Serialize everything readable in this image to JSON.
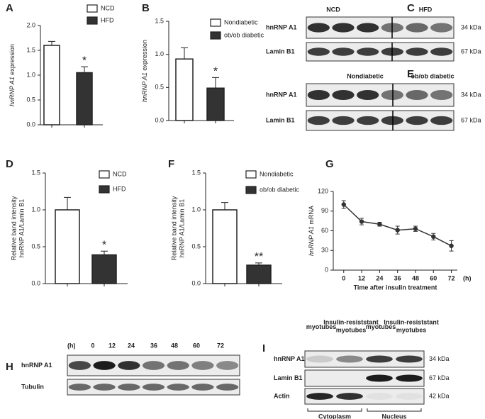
{
  "chart_data": [
    {
      "label": "A",
      "type": "bar",
      "y_label": [
        "hnRNP A1",
        "expression"
      ],
      "categories": [
        "NCD",
        "HFD"
      ],
      "values": [
        1.6,
        1.05
      ],
      "errors": [
        0.08,
        0.12
      ],
      "colors": [
        "#ffffff",
        "#333333"
      ],
      "ylim": [
        0,
        2
      ],
      "yticks": [
        {
          "value": 0,
          "label": "0.0"
        },
        0.5,
        {
          "value": 1,
          "label": "1.0"
        },
        1.5,
        {
          "value": 2,
          "label": "2.0"
        }
      ],
      "annotation": "*"
    },
    {
      "label": "B",
      "type": "bar",
      "y_label": [
        "hnRNP A1",
        "expression"
      ],
      "categories": [
        "Nondiabetic",
        "ob/ob diabetic"
      ],
      "values": [
        0.93,
        0.49
      ],
      "errors": [
        0.17,
        0.16
      ],
      "colors": [
        "#ffffff",
        "#333333"
      ],
      "ylim": [
        0,
        1.5
      ],
      "yticks": [
        {
          "value": 0,
          "label": "0.0"
        },
        0.5,
        {
          "value": 1,
          "label": "1.0"
        },
        1.5
      ],
      "annotation": "*"
    },
    {
      "label": "D",
      "type": "bar",
      "y_label": [
        "Relative band intensity",
        "hnRNP A1/Lamin B1"
      ],
      "categories": [
        "NCD",
        "HFD"
      ],
      "values": [
        1.0,
        0.39
      ],
      "errors": [
        0.17,
        0.05
      ],
      "colors": [
        "#ffffff",
        "#333333"
      ],
      "ylim": [
        0,
        1.5
      ],
      "yticks": [
        {
          "value": 0,
          "label": "0.0"
        },
        0.5,
        {
          "value": 1,
          "label": "1.0"
        },
        1.5
      ],
      "annotation": "*"
    },
    {
      "label": "F",
      "type": "bar",
      "y_label": [
        "Relative band intensity",
        "hnRNP A1/Lamin B1"
      ],
      "categories": [
        "Nondiabetic",
        "ob/ob diabetic"
      ],
      "values": [
        1.0,
        0.25
      ],
      "errors": [
        0.1,
        0.03
      ],
      "colors": [
        "#ffffff",
        "#333333"
      ],
      "ylim": [
        0,
        1.5
      ],
      "yticks": [
        {
          "value": 0,
          "label": "0.0"
        },
        0.5,
        {
          "value": 1,
          "label": "1.0"
        },
        1.5
      ],
      "annotation": "**"
    },
    {
      "label": "G",
      "type": "line",
      "y_label": [
        "hnRNP A1",
        "mRNA"
      ],
      "x_label": "Time after insulin treatment",
      "x_unit": "(h)",
      "x": [
        0,
        12,
        24,
        36,
        48,
        60,
        72
      ],
      "values": [
        100,
        74,
        70,
        61,
        63,
        51,
        37
      ],
      "errors": [
        6,
        5,
        3,
        6,
        4,
        5,
        8
      ],
      "color": "#333333",
      "xlim": [
        -7,
        76
      ],
      "xticks": [
        0,
        12,
        24,
        36,
        48,
        60,
        72
      ],
      "ylim": [
        0,
        120
      ],
      "yticks": [
        0,
        30,
        60,
        90,
        120
      ]
    }
  ],
  "blots": [
    {
      "label": "C",
      "columns": [
        [
          "NCD"
        ],
        [
          "HFD"
        ]
      ],
      "rows": [
        {
          "name": "hnRNP A1",
          "size": "34 kDa"
        },
        {
          "name": "Lamin B1",
          "size": "67 kDa"
        }
      ]
    },
    {
      "label": "E",
      "columns": [
        [
          "Nondiabetic"
        ],
        [
          "ob/ob diabetic"
        ]
      ],
      "rows": [
        {
          "name": "hnRNP A1",
          "size": "34 kDa"
        },
        {
          "name": "Lamin B1",
          "size": "67 kDa"
        }
      ]
    },
    {
      "label": "H",
      "unit": "(h)",
      "columns": [
        [
          "0"
        ],
        [
          "12"
        ],
        [
          "24"
        ],
        [
          "36"
        ],
        [
          "48"
        ],
        [
          "60"
        ],
        [
          "72"
        ]
      ],
      "rows": [
        {
          "name": "hnRNP A1"
        },
        {
          "name": "Tubulin"
        }
      ]
    },
    {
      "label": "I",
      "columns": [
        [
          "myotubes"
        ],
        [
          "Insulin-resiststant",
          "myotubes"
        ],
        [
          "myotubes"
        ],
        [
          "Insulin-resiststant",
          "myotubes"
        ]
      ],
      "rows": [
        {
          "name": "hnRNP A1",
          "size": "34 kDa"
        },
        {
          "name": "Lamin B1",
          "size": "67 kDa"
        },
        {
          "name": "Actin",
          "size": "42 kDa"
        }
      ],
      "groups": [
        "Cytoplasm",
        "Nucleus"
      ]
    }
  ]
}
